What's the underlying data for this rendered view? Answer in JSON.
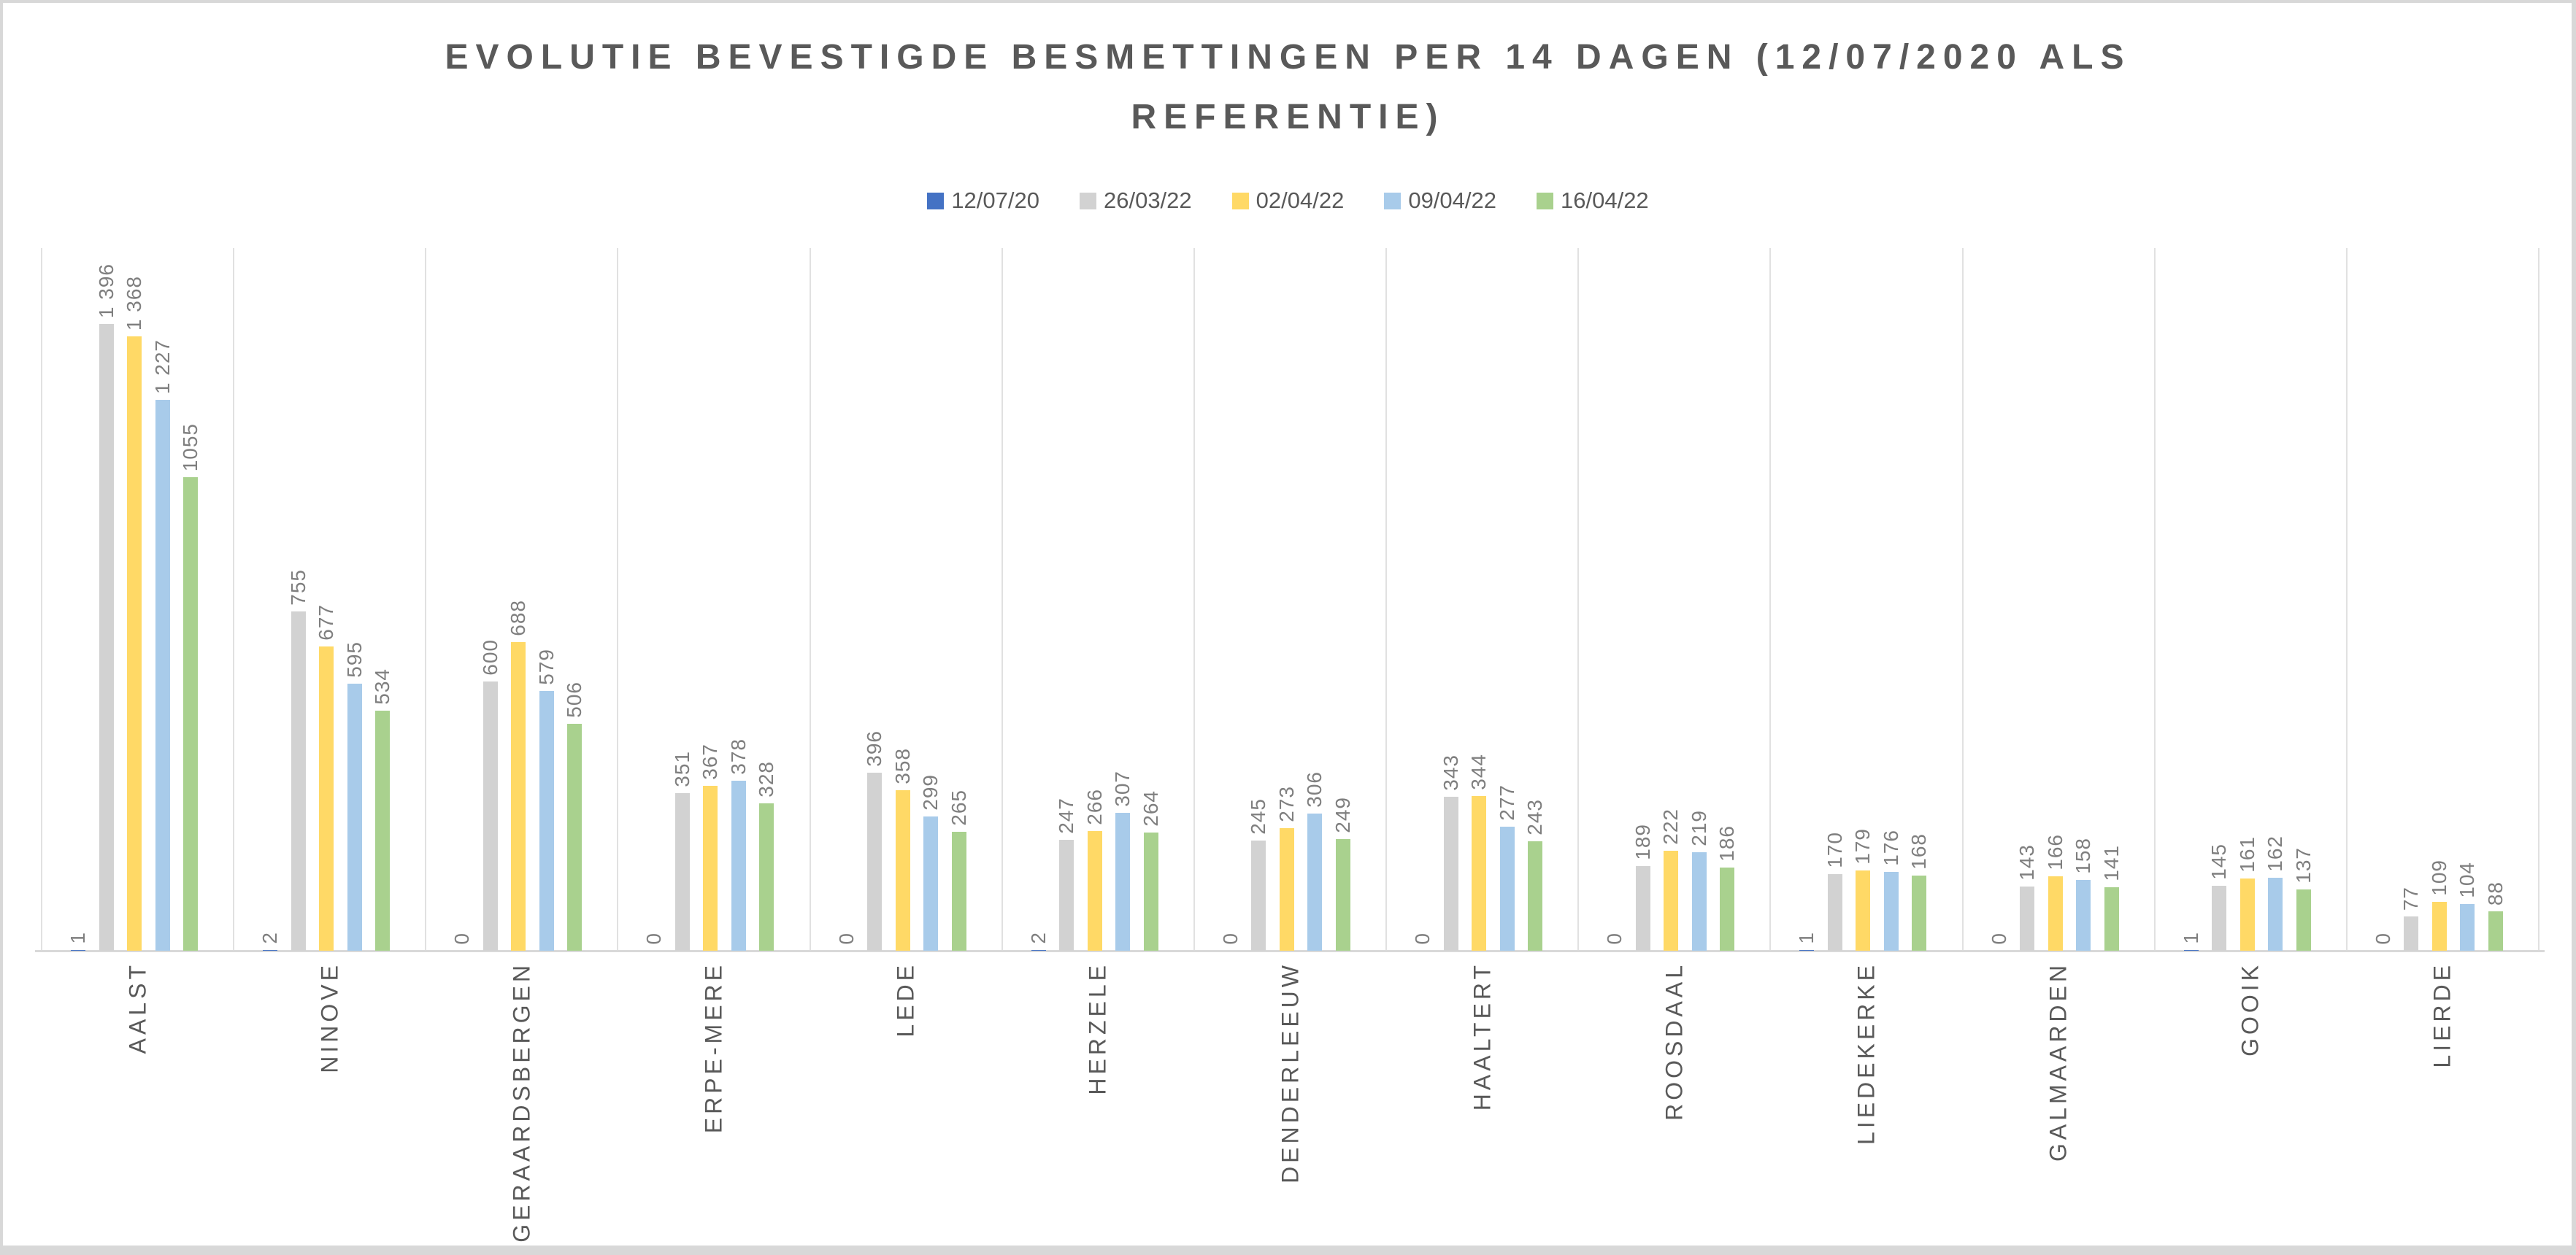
{
  "title": {
    "lines": [
      "EVOLUTIE BEVESTIGDE BESMETTINGEN PER 14 DAGEN (12/07/2020 ALS",
      "REFERENTIE)"
    ],
    "color": "#595959"
  },
  "legend": {
    "position": "top",
    "items": [
      {
        "label": "12/07/20",
        "color": "#4472C4"
      },
      {
        "label": "26/03/22",
        "color": "#D2D2D2"
      },
      {
        "label": "02/04/22",
        "color": "#FFD966"
      },
      {
        "label": "09/04/22",
        "color": "#A8CBEA"
      },
      {
        "label": "16/04/22",
        "color": "#A9D18E"
      }
    ]
  },
  "frame": {
    "border_color": "#d8d8d8"
  },
  "chart_data": {
    "type": "bar",
    "title": "EVOLUTIE BEVESTIGDE BESMETTINGEN PER 14 DAGEN (12/07/2020 ALS REFERENTIE)",
    "xlabel": "",
    "ylabel": "",
    "ylim": [
      0,
      1565
    ],
    "grid": "vertical-category-separators",
    "legend_position": "top",
    "y_axis_labels_visible": false,
    "data_label_rotation": "90deg-ccw-reading-bottom-to-top",
    "categories": [
      "AALST",
      "NINOVE",
      "GERAARDSBERGEN",
      "ERPE-MERE",
      "LEDE",
      "HERZELE",
      "DENDERLEEUW",
      "HAALTERT",
      "ROOSDAAL",
      "LIEDEKERKE",
      "GALMAARDEN",
      "GOOIK",
      "LIERDE"
    ],
    "series": [
      {
        "name": "12/07/20",
        "color": "#4472C4",
        "values": [
          1,
          2,
          0,
          0,
          0,
          2,
          0,
          0,
          0,
          1,
          0,
          1,
          0
        ],
        "labels": [
          "1",
          "2",
          "0",
          "0",
          "0",
          "2",
          "0",
          "0",
          "0",
          "1",
          "0",
          "1",
          "0"
        ]
      },
      {
        "name": "26/03/22",
        "color": "#D2D2D2",
        "values": [
          1396,
          755,
          600,
          351,
          396,
          247,
          245,
          343,
          189,
          170,
          143,
          145,
          77
        ],
        "labels": [
          "1 396",
          "755",
          "600",
          "351",
          "396",
          "247",
          "245",
          "343",
          "189",
          "170",
          "143",
          "145",
          "77"
        ]
      },
      {
        "name": "02/04/22",
        "color": "#FFD966",
        "values": [
          1368,
          677,
          688,
          367,
          358,
          266,
          273,
          344,
          222,
          179,
          166,
          161,
          109
        ],
        "labels": [
          "1 368",
          "677",
          "688",
          "367",
          "358",
          "266",
          "273",
          "344",
          "222",
          "179",
          "166",
          "161",
          "109"
        ]
      },
      {
        "name": "09/04/22",
        "color": "#A8CBEA",
        "values": [
          1227,
          595,
          579,
          378,
          299,
          307,
          306,
          277,
          219,
          176,
          158,
          162,
          104
        ],
        "labels": [
          "1 227",
          "595",
          "579",
          "378",
          "299",
          "307",
          "306",
          "277",
          "219",
          "176",
          "158",
          "162",
          "104"
        ]
      },
      {
        "name": "16/04/22",
        "color": "#A9D18E",
        "values": [
          1055,
          534,
          506,
          328,
          265,
          264,
          249,
          243,
          186,
          168,
          141,
          137,
          88
        ],
        "labels": [
          "1055",
          "534",
          "506",
          "328",
          "265",
          "264",
          "249",
          "243",
          "186",
          "168",
          "141",
          "137",
          "88"
        ]
      }
    ]
  }
}
